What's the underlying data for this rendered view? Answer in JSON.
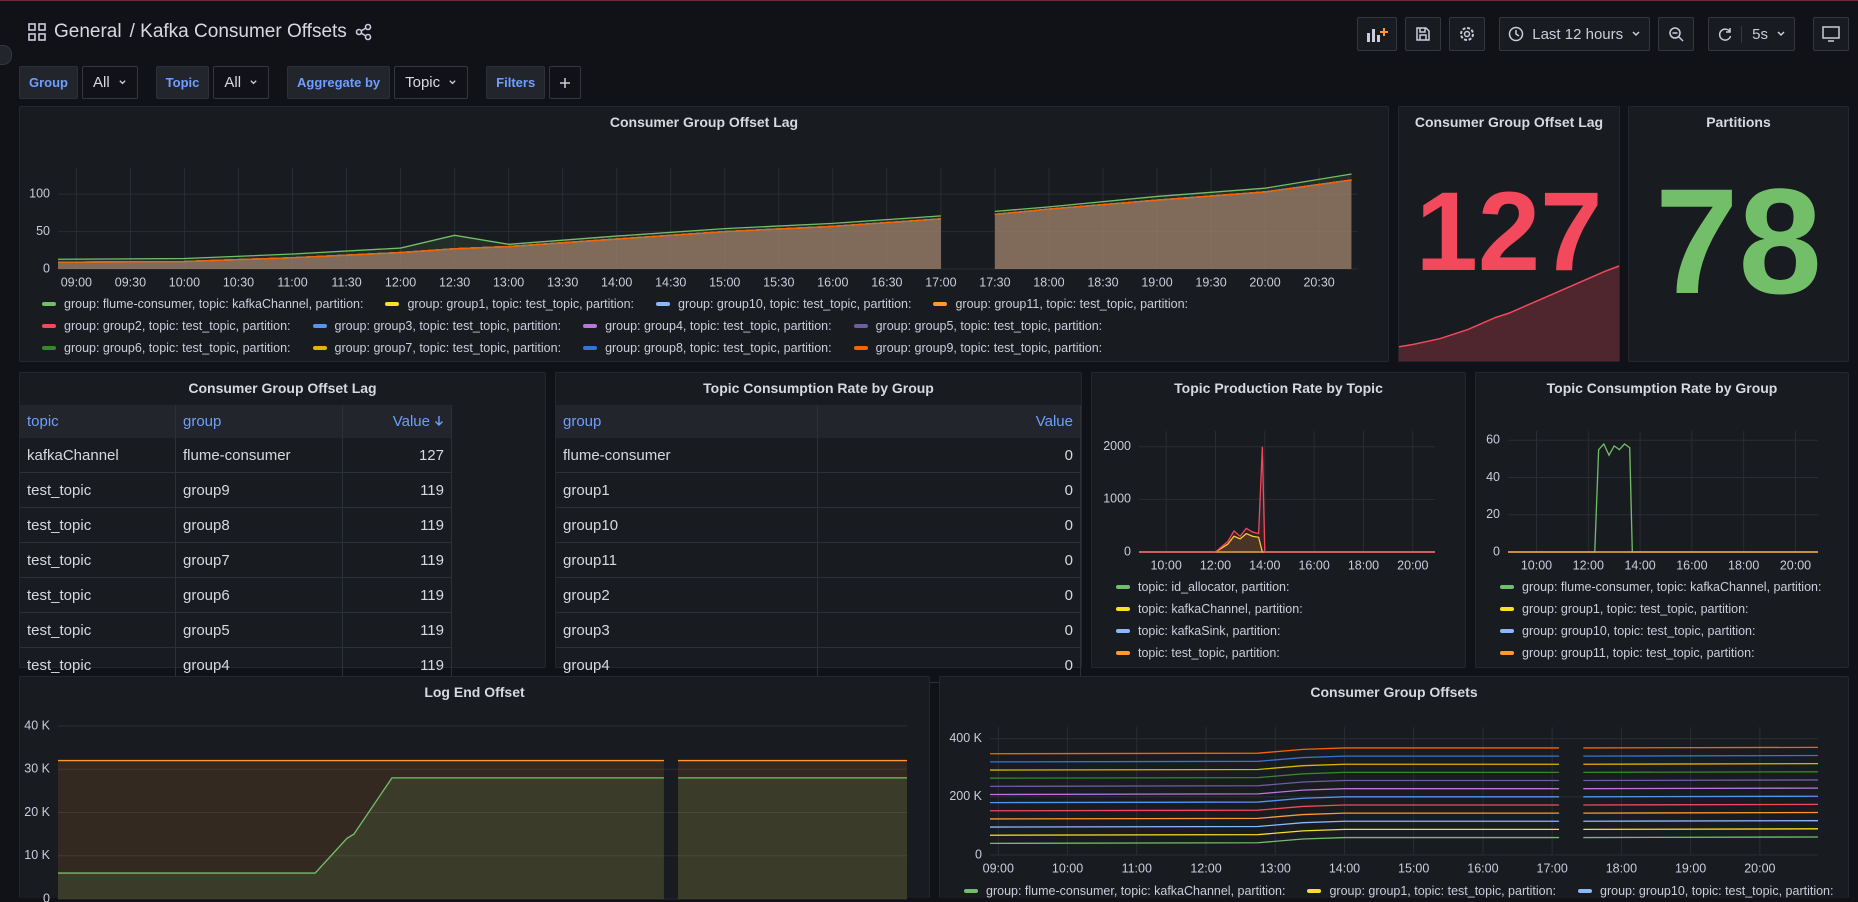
{
  "header": {
    "breadcrumb": "General",
    "title": "/ Kafka Consumer Offsets",
    "time_range": "Last 12 hours",
    "refresh": "5s"
  },
  "variables": [
    {
      "label": "Group",
      "value": "All"
    },
    {
      "label": "Topic",
      "value": "All"
    },
    {
      "label": "Aggregate by",
      "value": "Topic"
    },
    {
      "label": "Filters"
    }
  ],
  "stats": [
    {
      "title": "Consumer Group Offset Lag",
      "value": 127,
      "color": "#f2495c",
      "sparkline": [
        19,
        22,
        26,
        30,
        36,
        42,
        50,
        58,
        64,
        72,
        80,
        88,
        96,
        104,
        112,
        120,
        127
      ]
    },
    {
      "title": "Partitions",
      "value": 78,
      "color": "#73bf69"
    }
  ],
  "tables": [
    {
      "title": "Consumer Group Offset Lag",
      "columns": [
        "topic",
        "group",
        "Value"
      ],
      "rows": [
        [
          "kafkaChannel",
          "flume-consumer",
          127
        ],
        [
          "test_topic",
          "group9",
          119
        ],
        [
          "test_topic",
          "group8",
          119
        ],
        [
          "test_topic",
          "group7",
          119
        ],
        [
          "test_topic",
          "group6",
          119
        ],
        [
          "test_topic",
          "group5",
          119
        ],
        [
          "test_topic",
          "group4",
          119
        ]
      ]
    },
    {
      "title": "Topic Consumption Rate by Group",
      "columns": [
        "group",
        "Value"
      ],
      "rows": [
        [
          "flume-consumer",
          0
        ],
        [
          "group1",
          0
        ],
        [
          "group10",
          0
        ],
        [
          "group11",
          0
        ],
        [
          "group2",
          0
        ],
        [
          "group3",
          0
        ],
        [
          "group4",
          0
        ]
      ]
    }
  ],
  "chart_data": [
    {
      "type": "area",
      "title": "Consumer Group Offset Lag",
      "grid": true,
      "x": [
        8.83,
        10,
        11,
        12,
        12.5,
        13,
        14,
        15,
        16,
        17,
        17.25,
        17.5,
        18,
        19,
        20,
        20.8
      ],
      "xlim": [
        8.83,
        20.86
      ],
      "xticks": [
        {
          "value": 9,
          "label": "09:00"
        },
        {
          "value": 9.5,
          "label": "09:30"
        },
        {
          "value": 10,
          "label": "10:00"
        },
        {
          "value": 10.5,
          "label": "10:30"
        },
        {
          "value": 11,
          "label": "11:00"
        },
        {
          "value": 11.5,
          "label": "11:30"
        },
        {
          "value": 12,
          "label": "12:00"
        },
        {
          "value": 12.5,
          "label": "12:30"
        },
        {
          "value": 13,
          "label": "13:00"
        },
        {
          "value": 13.5,
          "label": "13:30"
        },
        {
          "value": 14,
          "label": "14:00"
        },
        {
          "value": 14.5,
          "label": "14:30"
        },
        {
          "value": 15,
          "label": "15:00"
        },
        {
          "value": 15.5,
          "label": "15:30"
        },
        {
          "value": 16,
          "label": "16:00"
        },
        {
          "value": 16.5,
          "label": "16:30"
        },
        {
          "value": 17,
          "label": "17:00"
        },
        {
          "value": 17.5,
          "label": "17:30"
        },
        {
          "value": 18,
          "label": "18:00"
        },
        {
          "value": 18.5,
          "label": "18:30"
        },
        {
          "value": 19,
          "label": "19:00"
        },
        {
          "value": 19.5,
          "label": "19:30"
        },
        {
          "value": 20,
          "label": "20:00"
        },
        {
          "value": 20.5,
          "label": "20:30"
        }
      ],
      "ylim": [
        0,
        135
      ],
      "yticks": [
        0,
        50,
        100
      ],
      "series": [
        {
          "name": "group: flume-consumer, topic: kafkaChannel, partition:",
          "color": "#73bf69",
          "values": [
            13,
            14,
            20,
            28,
            45,
            33,
            44,
            54,
            61,
            71,
            null,
            77,
            83,
            97,
            108,
            127
          ]
        },
        {
          "name": "group: group1, topic: test_topic, partition:",
          "color": "#fade2a",
          "values": [
            9,
            10,
            15,
            22,
            27,
            30,
            40,
            50,
            57,
            67,
            null,
            73,
            80,
            92,
            103,
            119
          ]
        },
        {
          "name": "group: group10, topic: test_topic, partition:",
          "color": "#8ab8ff",
          "values": [
            9,
            10,
            15,
            22,
            27,
            30,
            40,
            50,
            57,
            67,
            null,
            73,
            80,
            92,
            103,
            119
          ]
        },
        {
          "name": "group: group11, topic: test_topic, partition:",
          "color": "#ff9830",
          "values": [
            9,
            10,
            15,
            22,
            27,
            30,
            40,
            50,
            57,
            67,
            null,
            73,
            80,
            92,
            103,
            119
          ]
        },
        {
          "name": "group: group2, topic: test_topic, partition:",
          "color": "#f2495c",
          "values": [
            9,
            10,
            15,
            22,
            27,
            30,
            40,
            50,
            57,
            67,
            null,
            73,
            80,
            92,
            103,
            119
          ]
        },
        {
          "name": "group: group3, topic: test_topic, partition:",
          "color": "#5794f2",
          "values": [
            9,
            10,
            15,
            22,
            27,
            30,
            40,
            50,
            57,
            67,
            null,
            73,
            80,
            92,
            103,
            119
          ]
        },
        {
          "name": "group: group4, topic: test_topic, partition:",
          "color": "#b877d9",
          "values": [
            9,
            10,
            15,
            22,
            27,
            30,
            40,
            50,
            57,
            67,
            null,
            73,
            80,
            92,
            103,
            119
          ]
        },
        {
          "name": "group: group5, topic: test_topic, partition:",
          "color": "#705da0",
          "values": [
            9,
            10,
            15,
            22,
            27,
            30,
            40,
            50,
            57,
            67,
            null,
            73,
            80,
            92,
            103,
            119
          ]
        },
        {
          "name": "group: group6, topic: test_topic, partition:",
          "color": "#37872d",
          "values": [
            9,
            10,
            15,
            22,
            27,
            30,
            40,
            50,
            57,
            67,
            null,
            73,
            80,
            92,
            103,
            119
          ]
        },
        {
          "name": "group: group7, topic: test_topic, partition:",
          "color": "#e0b400",
          "values": [
            9,
            10,
            15,
            22,
            27,
            30,
            40,
            50,
            57,
            67,
            null,
            73,
            80,
            92,
            103,
            119
          ]
        },
        {
          "name": "group: group8, topic: test_topic, partition:",
          "color": "#3274d9",
          "values": [
            9,
            10,
            15,
            22,
            27,
            30,
            40,
            50,
            57,
            67,
            null,
            73,
            80,
            92,
            103,
            119
          ]
        },
        {
          "name": "group: group9, topic: test_topic, partition:",
          "color": "#fa6400",
          "values": [
            9,
            10,
            15,
            22,
            27,
            30,
            40,
            50,
            57,
            67,
            null,
            73,
            80,
            92,
            103,
            119
          ]
        }
      ]
    },
    {
      "type": "area",
      "title": "Topic Production Rate by Topic",
      "grid": true,
      "x": [
        8.9,
        12,
        12.5,
        12.75,
        13,
        13.25,
        13.5,
        13.75,
        13.9,
        14,
        16,
        17.5,
        20.9
      ],
      "xlim": [
        8.9,
        20.9
      ],
      "xticks": [
        {
          "value": 10,
          "label": "10:00"
        },
        {
          "value": 12,
          "label": "12:00"
        },
        {
          "value": 14,
          "label": "14:00"
        },
        {
          "value": 16,
          "label": "16:00"
        },
        {
          "value": 18,
          "label": "18:00"
        },
        {
          "value": 20,
          "label": "20:00"
        }
      ],
      "ylim": [
        0,
        2300
      ],
      "yticks": [
        0,
        1000,
        2000
      ],
      "series": [
        {
          "name": "topic: id_allocator, partition:",
          "color": "#73bf69",
          "values": [
            0,
            0,
            0,
            0,
            0,
            0,
            0,
            0,
            0,
            0,
            0,
            0,
            0
          ]
        },
        {
          "name": "topic: kafkaChannel, partition:",
          "color": "#fade2a",
          "values": [
            0,
            0,
            150,
            300,
            250,
            350,
            300,
            280,
            0,
            0,
            0,
            0,
            0
          ]
        },
        {
          "name": "topic: kafkaSink, partition:",
          "color": "#8ab8ff",
          "values": [
            0,
            0,
            0,
            0,
            0,
            0,
            0,
            0,
            0,
            0,
            0,
            0,
            0
          ]
        },
        {
          "name": "topic: test_topic, partition:",
          "color": "#ff9830",
          "values": [
            0,
            0,
            0,
            0,
            0,
            0,
            0,
            0,
            0,
            0,
            0,
            0,
            0
          ]
        },
        {
          "color": "#f2495c",
          "values": [
            0,
            0,
            200,
            400,
            300,
            450,
            380,
            350,
            2000,
            0,
            0,
            0,
            0
          ]
        }
      ]
    },
    {
      "type": "line",
      "title": "Topic Consumption Rate by Group",
      "grid": true,
      "x": [
        8.9,
        12,
        12.25,
        12.4,
        12.6,
        12.8,
        13,
        13.2,
        13.4,
        13.6,
        13.7,
        14,
        20.87
      ],
      "xlim": [
        8.9,
        20.87
      ],
      "xticks": [
        {
          "value": 10,
          "label": "10:00"
        },
        {
          "value": 12,
          "label": "12:00"
        },
        {
          "value": 14,
          "label": "14:00"
        },
        {
          "value": 16,
          "label": "16:00"
        },
        {
          "value": 18,
          "label": "18:00"
        },
        {
          "value": 20,
          "label": "20:00"
        }
      ],
      "ylim": [
        0,
        65
      ],
      "yticks": [
        0,
        20,
        40,
        60
      ],
      "series": [
        {
          "name": "group: flume-consumer, topic: kafkaChannel, partition:",
          "color": "#73bf69",
          "values": [
            0,
            0,
            0,
            55,
            58,
            52,
            57,
            55,
            58,
            56,
            0,
            0,
            0
          ]
        },
        {
          "name": "group: group1, topic: test_topic, partition:",
          "color": "#fade2a",
          "values": [
            0,
            0,
            0,
            0,
            0,
            0,
            0,
            0,
            0,
            0,
            0,
            0,
            0
          ]
        },
        {
          "name": "group: group10, topic: test_topic, partition:",
          "color": "#8ab8ff",
          "values": [
            0,
            0,
            0,
            0,
            0,
            0,
            0,
            0,
            0,
            0,
            0,
            0,
            0
          ]
        },
        {
          "name": "group: group11, topic: test_topic, partition:",
          "color": "#ff9830",
          "values": [
            0,
            0,
            0,
            0,
            0,
            0,
            0,
            0,
            0,
            0,
            0,
            0,
            0
          ]
        }
      ]
    },
    {
      "type": "area",
      "title": "Log End Offset",
      "grid": true,
      "x": [
        8.8,
        12.45,
        12.9,
        13.0,
        13.54,
        17.4,
        17.5,
        17.6,
        20.85
      ],
      "xlim": [
        8.8,
        20.85
      ],
      "ylim": [
        0,
        43000
      ],
      "yticks": [
        0,
        {
          "value": 10000,
          "label": "10 K"
        },
        {
          "value": 20000,
          "label": "20 K"
        },
        {
          "value": 30000,
          "label": "30 K"
        },
        {
          "value": 40000,
          "label": "40 K"
        }
      ],
      "series": [
        {
          "color": "#ff9830",
          "values": [
            32000,
            32000,
            32000,
            32000,
            32000,
            32000,
            null,
            32000,
            32000
          ]
        },
        {
          "color": "#73bf69",
          "values": [
            6000,
            6000,
            14000,
            15000,
            28000,
            28000,
            null,
            28000,
            28000
          ]
        }
      ]
    },
    {
      "type": "line",
      "title": "Consumer Group Offsets",
      "grid": true,
      "x": [
        8.88,
        12.75,
        13.4,
        14.0,
        17.1,
        17.25,
        17.45,
        20.84
      ],
      "xlim": [
        8.88,
        20.84
      ],
      "xticks": [
        {
          "value": 9,
          "label": "09:00"
        },
        {
          "value": 10,
          "label": "10:00"
        },
        {
          "value": 11,
          "label": "11:00"
        },
        {
          "value": 12,
          "label": "12:00"
        },
        {
          "value": 13,
          "label": "13:00"
        },
        {
          "value": 14,
          "label": "14:00"
        },
        {
          "value": 15,
          "label": "15:00"
        },
        {
          "value": 16,
          "label": "16:00"
        },
        {
          "value": 17,
          "label": "17:00"
        },
        {
          "value": 18,
          "label": "18:00"
        },
        {
          "value": 19,
          "label": "19:00"
        },
        {
          "value": 20,
          "label": "20:00"
        }
      ],
      "ylim": [
        0,
        440000
      ],
      "yticks": [
        0,
        {
          "value": 200000,
          "label": "200 K"
        },
        {
          "value": 400000,
          "label": "400 K"
        }
      ],
      "series": [
        {
          "name": "group: flume-consumer, topic: kafkaChannel, partition:",
          "color": "#73bf69",
          "values": [
            40000,
            42000,
            55000,
            60000,
            60000,
            null,
            60000,
            62000
          ]
        },
        {
          "name": "group: group1, topic: test_topic, partition:",
          "color": "#fade2a",
          "values": [
            68000,
            70000,
            83000,
            88000,
            88000,
            null,
            88000,
            90000
          ]
        },
        {
          "name": "group: group10, topic: test_topic, partition:",
          "color": "#8ab8ff",
          "values": [
            96000,
            98000,
            111000,
            116000,
            116000,
            null,
            116000,
            118000
          ]
        },
        {
          "color": "#ff9830",
          "values": [
            124000,
            126000,
            139000,
            144000,
            144000,
            null,
            144000,
            146000
          ]
        },
        {
          "color": "#f2495c",
          "values": [
            152000,
            154000,
            167000,
            172000,
            172000,
            null,
            172000,
            174000
          ]
        },
        {
          "color": "#5794f2",
          "values": [
            180000,
            182000,
            195000,
            200000,
            200000,
            null,
            200000,
            202000
          ]
        },
        {
          "color": "#b877d9",
          "values": [
            208000,
            210000,
            223000,
            228000,
            228000,
            null,
            228000,
            230000
          ]
        },
        {
          "color": "#705da0",
          "values": [
            236000,
            238000,
            251000,
            256000,
            256000,
            null,
            256000,
            258000
          ]
        },
        {
          "color": "#37872d",
          "values": [
            264000,
            266000,
            279000,
            284000,
            284000,
            null,
            284000,
            286000
          ]
        },
        {
          "color": "#e0b400",
          "values": [
            292000,
            294000,
            307000,
            312000,
            312000,
            null,
            312000,
            314000
          ]
        },
        {
          "color": "#3274d9",
          "values": [
            320000,
            322000,
            335000,
            340000,
            340000,
            null,
            340000,
            342000
          ]
        },
        {
          "color": "#fa6400",
          "values": [
            348000,
            350000,
            363000,
            368000,
            368000,
            null,
            368000,
            370000
          ]
        }
      ]
    }
  ]
}
